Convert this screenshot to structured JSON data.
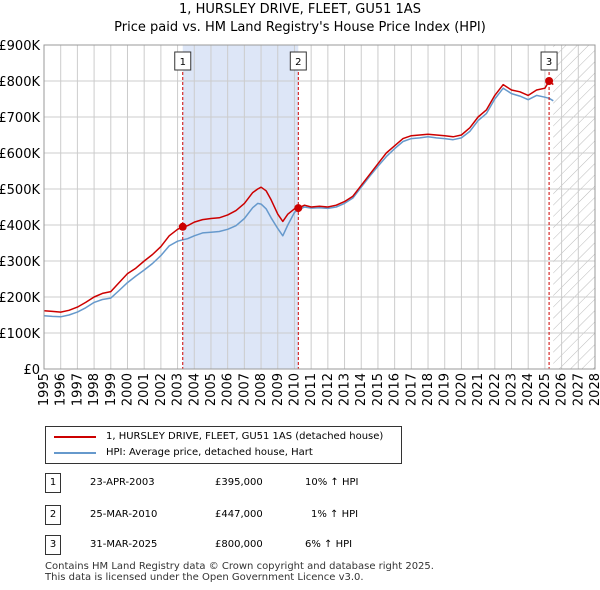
{
  "chart_data": {
    "type": "line",
    "title": "1, HURSLEY DRIVE, FLEET, GU51 1AS",
    "subtitle": "Price paid vs. HM Land Registry's House Price Index (HPI)",
    "xlim": [
      1995,
      2028
    ],
    "ylim": [
      0,
      900000
    ],
    "y_ticks": [
      {
        "value": 0,
        "label": "£0"
      },
      {
        "value": 100000,
        "label": "£100K"
      },
      {
        "value": 200000,
        "label": "£200K"
      },
      {
        "value": 300000,
        "label": "£300K"
      },
      {
        "value": 400000,
        "label": "£400K"
      },
      {
        "value": 500000,
        "label": "£500K"
      },
      {
        "value": 600000,
        "label": "£600K"
      },
      {
        "value": 700000,
        "label": "£700K"
      },
      {
        "value": 800000,
        "label": "£800K"
      },
      {
        "value": 900000,
        "label": "£900K"
      }
    ],
    "x_ticks": [
      "1995",
      "1996",
      "1997",
      "1998",
      "1999",
      "2000",
      "2001",
      "2002",
      "2003",
      "2004",
      "2005",
      "2006",
      "2007",
      "2008",
      "2009",
      "2010",
      "2011",
      "2012",
      "2013",
      "2014",
      "2015",
      "2016",
      "2017",
      "2018",
      "2019",
      "2020",
      "2021",
      "2022",
      "2023",
      "2024",
      "2025",
      "2026",
      "2027",
      "2028"
    ],
    "shaded_periods": [
      {
        "from": 2003.31,
        "to": 2010.23
      }
    ],
    "forecast_hatch_from": 2025.5,
    "series": [
      {
        "name": "1, HURSLEY DRIVE, FLEET, GU51 1AS (detached house)",
        "color": "#cc0000",
        "points": [
          [
            1995,
            162000
          ],
          [
            1995.5,
            160000
          ],
          [
            1996,
            158000
          ],
          [
            1996.5,
            163000
          ],
          [
            1997,
            172000
          ],
          [
            1997.5,
            185000
          ],
          [
            1998,
            200000
          ],
          [
            1998.5,
            210000
          ],
          [
            1999,
            215000
          ],
          [
            1999.5,
            240000
          ],
          [
            2000,
            265000
          ],
          [
            2000.5,
            280000
          ],
          [
            2001,
            300000
          ],
          [
            2001.5,
            318000
          ],
          [
            2002,
            340000
          ],
          [
            2002.5,
            370000
          ],
          [
            2003,
            388000
          ],
          [
            2003.31,
            395000
          ],
          [
            2003.6,
            398000
          ],
          [
            2004,
            408000
          ],
          [
            2004.5,
            415000
          ],
          [
            2005,
            418000
          ],
          [
            2005.5,
            420000
          ],
          [
            2006,
            428000
          ],
          [
            2006.5,
            440000
          ],
          [
            2007,
            460000
          ],
          [
            2007.5,
            490000
          ],
          [
            2007.8,
            500000
          ],
          [
            2008,
            505000
          ],
          [
            2008.3,
            495000
          ],
          [
            2008.6,
            470000
          ],
          [
            2009,
            430000
          ],
          [
            2009.3,
            410000
          ],
          [
            2009.6,
            430000
          ],
          [
            2010,
            445000
          ],
          [
            2010.23,
            447000
          ],
          [
            2010.6,
            455000
          ],
          [
            2011,
            450000
          ],
          [
            2011.5,
            452000
          ],
          [
            2012,
            450000
          ],
          [
            2012.5,
            455000
          ],
          [
            2013,
            465000
          ],
          [
            2013.5,
            480000
          ],
          [
            2014,
            510000
          ],
          [
            2014.5,
            540000
          ],
          [
            2015,
            570000
          ],
          [
            2015.5,
            600000
          ],
          [
            2016,
            620000
          ],
          [
            2016.5,
            640000
          ],
          [
            2017,
            648000
          ],
          [
            2017.5,
            650000
          ],
          [
            2018,
            652000
          ],
          [
            2018.5,
            650000
          ],
          [
            2019,
            648000
          ],
          [
            2019.5,
            645000
          ],
          [
            2020,
            650000
          ],
          [
            2020.5,
            670000
          ],
          [
            2021,
            700000
          ],
          [
            2021.5,
            720000
          ],
          [
            2022,
            760000
          ],
          [
            2022.5,
            790000
          ],
          [
            2023,
            775000
          ],
          [
            2023.5,
            770000
          ],
          [
            2024,
            760000
          ],
          [
            2024.5,
            775000
          ],
          [
            2025,
            780000
          ],
          [
            2025.25,
            800000
          ],
          [
            2025.5,
            790000
          ]
        ]
      },
      {
        "name": "HPI: Average price, detached house, Hart",
        "color": "#6699cc",
        "points": [
          [
            1995,
            148000
          ],
          [
            1995.5,
            146000
          ],
          [
            1996,
            145000
          ],
          [
            1996.5,
            150000
          ],
          [
            1997,
            158000
          ],
          [
            1997.5,
            170000
          ],
          [
            1998,
            185000
          ],
          [
            1998.5,
            193000
          ],
          [
            1999,
            197000
          ],
          [
            1999.5,
            218000
          ],
          [
            2000,
            240000
          ],
          [
            2000.5,
            258000
          ],
          [
            2001,
            275000
          ],
          [
            2001.5,
            293000
          ],
          [
            2002,
            315000
          ],
          [
            2002.5,
            342000
          ],
          [
            2003,
            355000
          ],
          [
            2003.31,
            359000
          ],
          [
            2003.6,
            362000
          ],
          [
            2004,
            370000
          ],
          [
            2004.5,
            378000
          ],
          [
            2005,
            380000
          ],
          [
            2005.5,
            382000
          ],
          [
            2006,
            388000
          ],
          [
            2006.5,
            398000
          ],
          [
            2007,
            418000
          ],
          [
            2007.5,
            448000
          ],
          [
            2007.8,
            460000
          ],
          [
            2008,
            458000
          ],
          [
            2008.3,
            445000
          ],
          [
            2008.6,
            420000
          ],
          [
            2009,
            390000
          ],
          [
            2009.3,
            370000
          ],
          [
            2009.6,
            400000
          ],
          [
            2010,
            435000
          ],
          [
            2010.23,
            443000
          ],
          [
            2010.6,
            450000
          ],
          [
            2011,
            447000
          ],
          [
            2011.5,
            448000
          ],
          [
            2012,
            446000
          ],
          [
            2012.5,
            450000
          ],
          [
            2013,
            460000
          ],
          [
            2013.5,
            475000
          ],
          [
            2014,
            505000
          ],
          [
            2014.5,
            535000
          ],
          [
            2015,
            563000
          ],
          [
            2015.5,
            590000
          ],
          [
            2016,
            612000
          ],
          [
            2016.5,
            632000
          ],
          [
            2017,
            640000
          ],
          [
            2017.5,
            642000
          ],
          [
            2018,
            645000
          ],
          [
            2018.5,
            642000
          ],
          [
            2019,
            640000
          ],
          [
            2019.5,
            637000
          ],
          [
            2020,
            642000
          ],
          [
            2020.5,
            660000
          ],
          [
            2021,
            690000
          ],
          [
            2021.5,
            710000
          ],
          [
            2022,
            750000
          ],
          [
            2022.5,
            780000
          ],
          [
            2023,
            765000
          ],
          [
            2023.5,
            758000
          ],
          [
            2024,
            748000
          ],
          [
            2024.5,
            760000
          ],
          [
            2025,
            755000
          ],
          [
            2025.25,
            752000
          ],
          [
            2025.5,
            745000
          ]
        ]
      }
    ],
    "sales": [
      {
        "num": "1",
        "x": 2003.31,
        "price": 395000,
        "date": "23-APR-2003",
        "price_label": "£395,000",
        "delta": "10% ↑ HPI"
      },
      {
        "num": "2",
        "x": 2010.23,
        "price": 447000,
        "date": "25-MAR-2010",
        "price_label": "£447,000",
        "delta": "1% ↑ HPI"
      },
      {
        "num": "3",
        "x": 2025.25,
        "price": 800000,
        "date": "31-MAR-2025",
        "price_label": "£800,000",
        "delta": "6% ↑ HPI"
      }
    ]
  },
  "legend": {
    "property": "1, HURSLEY DRIVE, FLEET, GU51 1AS (detached house)",
    "hpi": "HPI: Average price, detached house, Hart"
  },
  "footer": {
    "line1": "Contains HM Land Registry data © Crown copyright and database right 2025.",
    "line2": "This data is licensed under the Open Government Licence v3.0."
  },
  "colors": {
    "property_line": "#cc0000",
    "hpi_line": "#6699cc",
    "shade": "#dde6f7",
    "grid": "#cccccc",
    "sale_vline": "#cc0000"
  }
}
